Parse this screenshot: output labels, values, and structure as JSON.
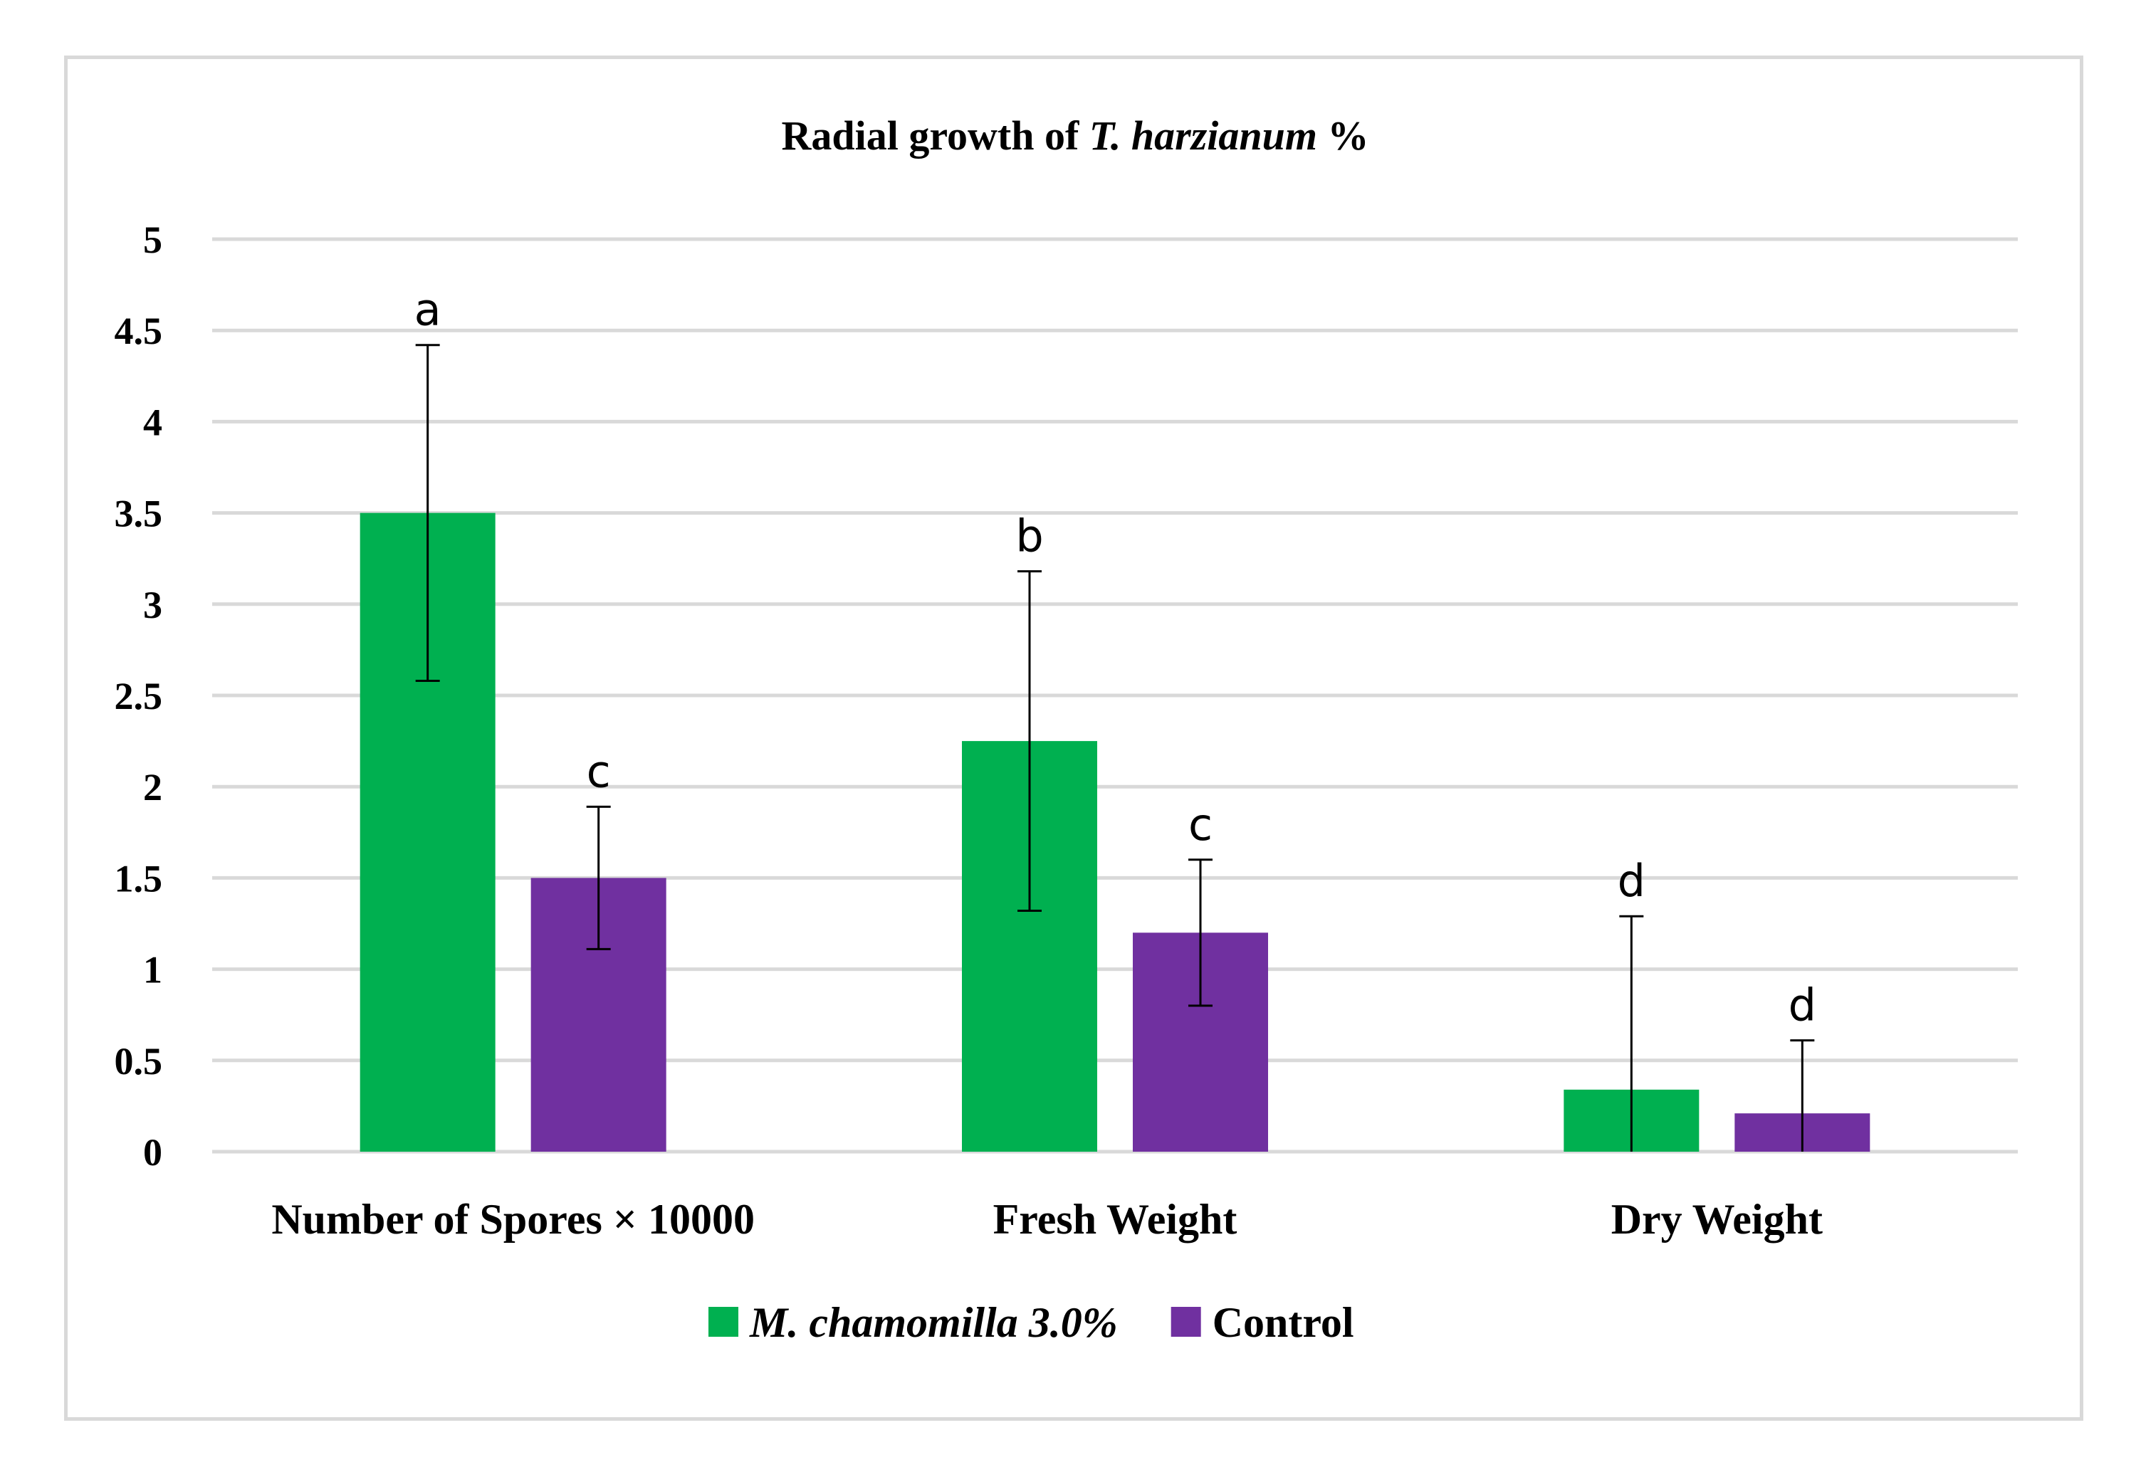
{
  "chart_data": {
    "type": "bar",
    "title_prefix": "Radial growth of ",
    "title_italic": "T. harzianum",
    "title_suffix": " %",
    "categories": [
      "Number of Spores × 10000",
      "Fresh Weight",
      "Dry Weight"
    ],
    "series": [
      {
        "name": "M. chamomilla 3.0%",
        "italic": true,
        "color": "#00b050",
        "values": [
          3.5,
          2.25,
          0.34
        ],
        "errors": [
          0.92,
          0.93,
          0.95
        ],
        "labels": [
          "a",
          "b",
          "d"
        ]
      },
      {
        "name": "Control",
        "italic": false,
        "color": "#7030a0",
        "values": [
          1.5,
          1.2,
          0.21
        ],
        "errors": [
          0.39,
          0.4,
          0.4
        ],
        "labels": [
          "c",
          "c",
          "d"
        ]
      }
    ],
    "ylim": [
      0,
      5
    ],
    "yticks": [
      "0",
      "0.5",
      "1",
      "1.5",
      "2",
      "2.5",
      "3",
      "3.5",
      "4",
      "4.5",
      "5"
    ],
    "xlabel": "",
    "ylabel": "",
    "grid": true,
    "legend_position": "bottom"
  }
}
